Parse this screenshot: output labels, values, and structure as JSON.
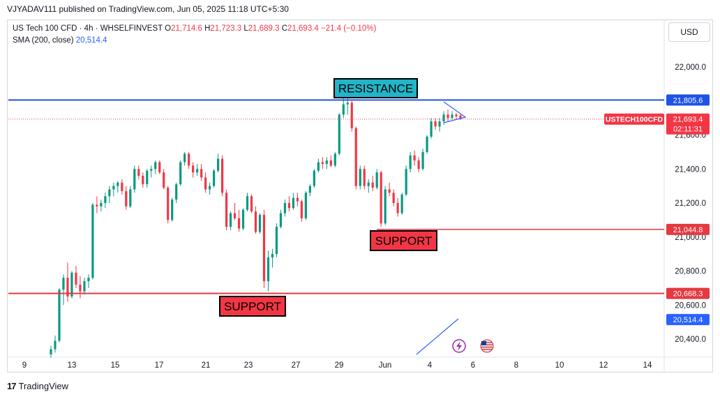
{
  "publisher": "VJYADAV111 published on TradingView.com, Jun 05, 2025 11:18 UTC+5:30",
  "legend": {
    "symbol": "US Tech 100 CFD · 4h · WHSELFINVEST",
    "o_label": "O",
    "o": "21,714.6",
    "h_label": "H",
    "h": "21,723.3",
    "l_label": "L",
    "l": "21,689.3",
    "c_label": "C",
    "c": "21,693.4",
    "change": "−21.4 (−0.10%)",
    "sma_label": "SMA (200, close)",
    "sma_value": "20,514.4"
  },
  "currency": "USD",
  "footer": {
    "logo": "17",
    "brand": "TradingView"
  },
  "colors": {
    "up": "#089981",
    "down": "#f23645",
    "blue": "#2962ff",
    "resistance": "#1e53e5",
    "support": "#e53940",
    "label_bg_teal": "#22b5c9",
    "label_bg_red": "#f23645"
  },
  "chart_data": {
    "type": "candlestick",
    "ylim": [
      20300,
      22200
    ],
    "y_ticks": [
      "20,400.0",
      "20,600.0",
      "20,800.0",
      "21,000.0",
      "21,200.0",
      "21,400.0",
      "21,600.0",
      "21,800.0",
      "22,000.0"
    ],
    "x_ticks": [
      "9",
      "13",
      "15",
      "17",
      "21",
      "23",
      "27",
      "29",
      "Jun",
      "4",
      "6",
      "8",
      "10",
      "12",
      "14"
    ],
    "ohlc": [
      [
        20310,
        20360,
        20290,
        20340
      ],
      [
        20340,
        20420,
        20320,
        20390
      ],
      [
        20390,
        20700,
        20380,
        20690
      ],
      [
        20690,
        20780,
        20600,
        20760
      ],
      [
        20760,
        20850,
        20620,
        20650
      ],
      [
        20650,
        20800,
        20640,
        20790
      ],
      [
        20790,
        20830,
        20700,
        20720
      ],
      [
        20720,
        20770,
        20640,
        20680
      ],
      [
        20680,
        20760,
        20660,
        20740
      ],
      [
        20740,
        20780,
        20700,
        20760
      ],
      [
        20760,
        21200,
        20750,
        21190
      ],
      [
        21190,
        21240,
        21140,
        21180
      ],
      [
        21180,
        21220,
        21150,
        21200
      ],
      [
        21200,
        21260,
        21170,
        21240
      ],
      [
        21240,
        21300,
        21200,
        21280
      ],
      [
        21280,
        21320,
        21240,
        21300
      ],
      [
        21300,
        21330,
        21260,
        21320
      ],
      [
        21320,
        21340,
        21250,
        21270
      ],
      [
        21270,
        21300,
        21160,
        21180
      ],
      [
        21180,
        21300,
        21170,
        21280
      ],
      [
        21280,
        21420,
        21260,
        21400
      ],
      [
        21400,
        21420,
        21340,
        21360
      ],
      [
        21360,
        21380,
        21290,
        21310
      ],
      [
        21310,
        21400,
        21290,
        21390
      ],
      [
        21390,
        21420,
        21350,
        21400
      ],
      [
        21400,
        21450,
        21370,
        21440
      ],
      [
        21440,
        21450,
        21370,
        21380
      ],
      [
        21380,
        21400,
        21280,
        21290
      ],
      [
        21290,
        21300,
        21080,
        21100
      ],
      [
        21100,
        21230,
        21090,
        21220
      ],
      [
        21220,
        21320,
        21200,
        21310
      ],
      [
        21310,
        21450,
        21300,
        21440
      ],
      [
        21440,
        21500,
        21420,
        21490
      ],
      [
        21490,
        21500,
        21400,
        21420
      ],
      [
        21420,
        21440,
        21350,
        21380
      ],
      [
        21380,
        21430,
        21360,
        21400
      ],
      [
        21400,
        21430,
        21330,
        21350
      ],
      [
        21350,
        21380,
        21260,
        21280
      ],
      [
        21280,
        21320,
        21250,
        21300
      ],
      [
        21300,
        21400,
        21290,
        21390
      ],
      [
        21390,
        21490,
        21380,
        21460
      ],
      [
        21460,
        21480,
        21240,
        21260
      ],
      [
        21260,
        21280,
        21040,
        21060
      ],
      [
        21060,
        21150,
        21040,
        21140
      ],
      [
        21140,
        21200,
        21100,
        21110
      ],
      [
        21110,
        21160,
        21030,
        21050
      ],
      [
        21050,
        21170,
        21040,
        21160
      ],
      [
        21160,
        21260,
        21150,
        21240
      ],
      [
        21240,
        21250,
        21140,
        21150
      ],
      [
        21150,
        21180,
        21020,
        21030
      ],
      [
        21030,
        21140,
        21020,
        21130
      ],
      [
        21130,
        21160,
        20700,
        20740
      ],
      [
        20740,
        20920,
        20680,
        20880
      ],
      [
        20880,
        20930,
        20820,
        20900
      ],
      [
        20900,
        21080,
        20880,
        21060
      ],
      [
        21060,
        21160,
        21050,
        21140
      ],
      [
        21140,
        21220,
        21120,
        21200
      ],
      [
        21200,
        21240,
        21150,
        21170
      ],
      [
        21170,
        21260,
        21160,
        21230
      ],
      [
        21230,
        21260,
        21180,
        21210
      ],
      [
        21210,
        21220,
        21090,
        21110
      ],
      [
        21110,
        21270,
        21100,
        21260
      ],
      [
        21260,
        21310,
        21240,
        21300
      ],
      [
        21300,
        21400,
        21290,
        21390
      ],
      [
        21390,
        21460,
        21380,
        21440
      ],
      [
        21440,
        21470,
        21400,
        21430
      ],
      [
        21430,
        21470,
        21400,
        21450
      ],
      [
        21450,
        21480,
        21410,
        21420
      ],
      [
        21420,
        21500,
        21410,
        21490
      ],
      [
        21490,
        21730,
        21480,
        21720
      ],
      [
        21720,
        21820,
        21700,
        21780
      ],
      [
        21780,
        21830,
        21720,
        21790
      ],
      [
        21790,
        21800,
        21620,
        21640
      ],
      [
        21640,
        21650,
        21280,
        21300
      ],
      [
        21300,
        21420,
        21280,
        21400
      ],
      [
        21400,
        21420,
        21280,
        21300
      ],
      [
        21300,
        21340,
        21260,
        21320
      ],
      [
        21320,
        21360,
        21270,
        21290
      ],
      [
        21290,
        21400,
        21280,
        21380
      ],
      [
        21380,
        21390,
        21060,
        21080
      ],
      [
        21080,
        21300,
        21070,
        21280
      ],
      [
        21280,
        21320,
        21240,
        21260
      ],
      [
        21260,
        21280,
        21180,
        21200
      ],
      [
        21200,
        21230,
        21120,
        21140
      ],
      [
        21140,
        21260,
        21130,
        21250
      ],
      [
        21250,
        21420,
        21240,
        21400
      ],
      [
        21400,
        21500,
        21380,
        21480
      ],
      [
        21480,
        21510,
        21420,
        21450
      ],
      [
        21450,
        21470,
        21380,
        21400
      ],
      [
        21400,
        21520,
        21390,
        21500
      ],
      [
        21500,
        21600,
        21490,
        21590
      ],
      [
        21590,
        21700,
        21580,
        21680
      ],
      [
        21680,
        21700,
        21630,
        21650
      ],
      [
        21650,
        21700,
        21620,
        21680
      ],
      [
        21680,
        21740,
        21660,
        21720
      ],
      [
        21720,
        21750,
        21680,
        21700
      ],
      [
        21700,
        21740,
        21690,
        21720
      ],
      [
        21720,
        21730,
        21690,
        21710
      ],
      [
        21714.6,
        21723.3,
        21689.3,
        21693.4
      ]
    ],
    "horizontal_levels": [
      {
        "value": 21805.6,
        "label": "21,805.6",
        "color": "#1e53e5"
      },
      {
        "value": 21044.8,
        "label": "21,044.8",
        "color": "#e53940"
      },
      {
        "value": 20668.3,
        "label": "20,668.3",
        "color": "#e53940"
      }
    ],
    "last_price": {
      "value": 21693.4,
      "label": "21,693.4",
      "countdown": "02:11:31",
      "symbol_tag": "USTECH100CFD"
    },
    "sma": {
      "label": "20,514.4",
      "value": 20514.4,
      "segment": [
        [
          20280,
          20270
        ],
        [
          20514.4,
          20514.4
        ]
      ]
    },
    "annotations": [
      {
        "text": "RESISTANCE",
        "kind": "resistance"
      },
      {
        "text": "SUPPORT",
        "kind": "support-upper"
      },
      {
        "text": "SUPPORT",
        "kind": "support-lower"
      }
    ]
  }
}
